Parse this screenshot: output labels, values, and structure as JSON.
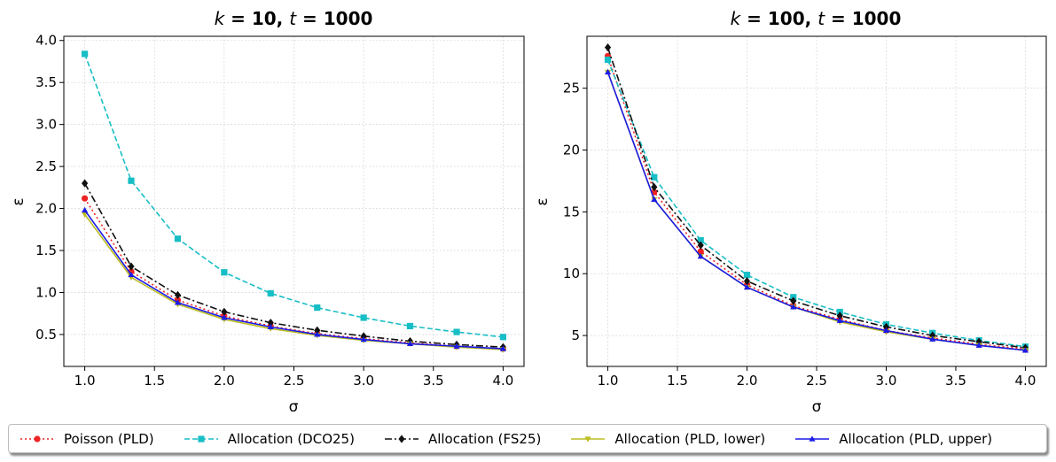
{
  "chart_data": [
    {
      "type": "line",
      "title_k": "k",
      "title_k_value": " = 10, ",
      "title_t": "t",
      "title_t_value": " = 1000",
      "xlabel": "σ",
      "ylabel": "ε",
      "xlim": [
        0.85,
        4.15
      ],
      "ylim": [
        0.12,
        4.05
      ],
      "xticks": [
        1.0,
        1.5,
        2.0,
        2.5,
        3.0,
        3.5,
        4.0
      ],
      "xtick_labels": [
        "1.0",
        "1.5",
        "2.0",
        "2.5",
        "3.0",
        "3.5",
        "4.0"
      ],
      "yticks": [
        0.5,
        1.0,
        1.5,
        2.0,
        2.5,
        3.0,
        3.5,
        4.0
      ],
      "ytick_labels": [
        "0.5",
        "1.0",
        "1.5",
        "2.0",
        "2.5",
        "3.0",
        "3.5",
        "4.0"
      ],
      "grid": true,
      "x": [
        1.0,
        1.333,
        1.667,
        2.0,
        2.333,
        2.667,
        3.0,
        3.333,
        3.667,
        4.0
      ],
      "series": [
        {
          "name": "Poisson (PLD)",
          "values": [
            2.12,
            1.25,
            0.91,
            0.72,
            0.6,
            0.51,
            0.45,
            0.4,
            0.36,
            0.33
          ]
        },
        {
          "name": "Allocation (DCO25)",
          "values": [
            3.84,
            2.33,
            1.64,
            1.24,
            0.99,
            0.82,
            0.7,
            0.6,
            0.53,
            0.47
          ]
        },
        {
          "name": "Allocation (FS25)",
          "values": [
            2.3,
            1.31,
            0.97,
            0.77,
            0.64,
            0.55,
            0.48,
            0.42,
            0.38,
            0.35
          ]
        },
        {
          "name": "Allocation (PLD, lower)",
          "values": [
            1.93,
            1.18,
            0.86,
            0.68,
            0.57,
            0.49,
            0.43,
            0.39,
            0.35,
            0.32
          ]
        },
        {
          "name": "Allocation (PLD, upper)",
          "values": [
            1.98,
            1.21,
            0.88,
            0.7,
            0.59,
            0.5,
            0.44,
            0.39,
            0.36,
            0.33
          ]
        }
      ]
    },
    {
      "type": "line",
      "title_k": "k",
      "title_k_value": " = 100, ",
      "title_t": "t",
      "title_t_value": " = 1000",
      "xlabel": "σ",
      "ylabel": "ε",
      "xlim": [
        0.85,
        4.15
      ],
      "ylim": [
        2.5,
        29.2
      ],
      "xticks": [
        1.0,
        1.5,
        2.0,
        2.5,
        3.0,
        3.5,
        4.0
      ],
      "xtick_labels": [
        "1.0",
        "1.5",
        "2.0",
        "2.5",
        "3.0",
        "3.5",
        "4.0"
      ],
      "yticks": [
        5,
        10,
        15,
        20,
        25
      ],
      "ytick_labels": [
        "5",
        "10",
        "15",
        "20",
        "25"
      ],
      "grid": true,
      "x": [
        1.0,
        1.333,
        1.667,
        2.0,
        2.333,
        2.667,
        3.0,
        3.333,
        3.667,
        4.0
      ],
      "series": [
        {
          "name": "Poisson (PLD)",
          "values": [
            27.6,
            16.6,
            11.8,
            9.1,
            7.4,
            6.3,
            5.4,
            4.8,
            4.3,
            3.9
          ]
        },
        {
          "name": "Allocation (DCO25)",
          "values": [
            27.3,
            17.8,
            12.7,
            9.9,
            8.1,
            6.9,
            5.9,
            5.2,
            4.6,
            4.1
          ]
        },
        {
          "name": "Allocation (FS25)",
          "values": [
            28.3,
            17.0,
            12.3,
            9.4,
            7.8,
            6.6,
            5.7,
            5.0,
            4.5,
            4.0
          ]
        },
        {
          "name": "Allocation (PLD, lower)",
          "values": [
            26.3,
            16.0,
            11.4,
            8.9,
            7.3,
            6.1,
            5.3,
            4.7,
            4.2,
            3.8
          ]
        },
        {
          "name": "Allocation (PLD, upper)",
          "values": [
            26.3,
            16.0,
            11.4,
            8.9,
            7.3,
            6.2,
            5.4,
            4.7,
            4.2,
            3.8
          ]
        }
      ]
    }
  ],
  "legend": {
    "items": [
      {
        "label": "Poisson (PLD)",
        "color": "#ee2222",
        "marker": "circle",
        "dash": "dotted"
      },
      {
        "label": "Allocation (DCO25)",
        "color": "#17bec5",
        "marker": "square",
        "dash": "dashed"
      },
      {
        "label": "Allocation (FS25)",
        "color": "#111111",
        "marker": "diamond",
        "dash": "dashdot"
      },
      {
        "label": "Allocation (PLD, lower)",
        "color": "#bcbd22",
        "marker": "triangle-down",
        "dash": "solid"
      },
      {
        "label": "Allocation (PLD, upper)",
        "color": "#1a1ae6",
        "marker": "triangle-up",
        "dash": "solid"
      }
    ]
  }
}
